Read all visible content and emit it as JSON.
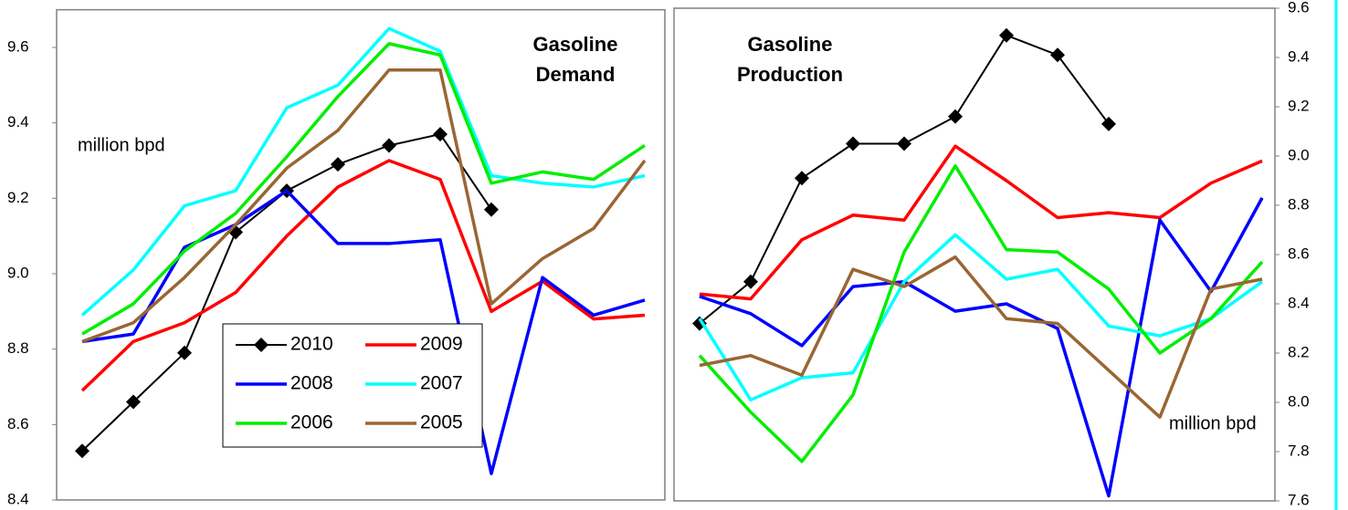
{
  "chart_data": [
    {
      "type": "line",
      "title": [
        "Gasoline",
        "Demand"
      ],
      "ylabel": "million bpd",
      "y_axis_side": "left",
      "categories": [
        null,
        null,
        null,
        null,
        null,
        null,
        null,
        null,
        null,
        null,
        null,
        null
      ],
      "ylim": [
        8.4,
        9.7
      ],
      "yticks": [
        8.4,
        8.6,
        8.8,
        {
          "value": 9,
          "label": "9.0"
        },
        9.2,
        9.4,
        9.6
      ],
      "series": [
        {
          "name": "2010",
          "color": "#000000",
          "marker": "diamond",
          "values": [
            8.53,
            8.66,
            8.79,
            9.11,
            9.22,
            9.29,
            9.34,
            9.37,
            9.17,
            null,
            null,
            null
          ]
        },
        {
          "name": "2009",
          "color": "#ff0000",
          "values": [
            8.69,
            8.82,
            8.87,
            8.95,
            9.1,
            9.23,
            9.3,
            9.25,
            8.9,
            8.98,
            8.88,
            8.89
          ]
        },
        {
          "name": "2008",
          "color": "#0000ff",
          "values": [
            8.82,
            8.84,
            9.07,
            9.13,
            9.22,
            9.08,
            9.08,
            9.09,
            8.47,
            8.99,
            8.89,
            8.93
          ]
        },
        {
          "name": "2007",
          "color": "#00ffff",
          "values": [
            8.89,
            9.01,
            9.18,
            9.22,
            9.44,
            9.5,
            9.65,
            9.59,
            9.26,
            9.24,
            9.23,
            9.26
          ]
        },
        {
          "name": "2006",
          "color": "#00ee00",
          "values": [
            8.84,
            8.92,
            9.06,
            9.16,
            9.31,
            9.47,
            9.61,
            9.58,
            9.24,
            9.27,
            9.25,
            9.34
          ]
        },
        {
          "name": "2005",
          "color": "#996633",
          "values": [
            8.82,
            8.87,
            8.99,
            9.13,
            9.28,
            9.38,
            9.54,
            9.54,
            8.92,
            9.04,
            9.12,
            9.3
          ]
        }
      ]
    },
    {
      "type": "line",
      "title": [
        "Gasoline",
        "Production"
      ],
      "ylabel": "million bpd",
      "y_axis_side": "right",
      "categories": [
        null,
        null,
        null,
        null,
        null,
        null,
        null,
        null,
        null,
        null,
        null,
        null
      ],
      "ylim": [
        7.6,
        9.6
      ],
      "yticks": [
        7.6,
        7.8,
        {
          "value": 8,
          "label": "8.0"
        },
        8.2,
        8.4,
        8.6,
        8.8,
        {
          "value": 9,
          "label": "9.0"
        },
        9.2,
        9.4,
        9.6
      ],
      "series": [
        {
          "color": "#000000",
          "marker": "diamond",
          "values": [
            8.32,
            8.49,
            8.91,
            9.05,
            9.05,
            9.16,
            9.49,
            9.41,
            9.13,
            null,
            null,
            null
          ]
        },
        {
          "color": "#ff0000",
          "values": [
            8.44,
            8.42,
            8.66,
            8.76,
            8.74,
            9.04,
            8.9,
            8.75,
            8.77,
            8.75,
            8.89,
            8.98
          ]
        },
        {
          "color": "#0000ff",
          "values": [
            8.43,
            8.36,
            8.23,
            8.47,
            8.49,
            8.37,
            8.4,
            8.3,
            7.62,
            8.74,
            8.45,
            8.83
          ]
        },
        {
          "color": "#00ffff",
          "values": [
            8.34,
            8.01,
            8.1,
            8.12,
            8.49,
            8.68,
            8.5,
            8.54,
            8.31,
            8.27,
            8.34,
            8.49
          ]
        },
        {
          "color": "#00ee00",
          "values": [
            8.19,
            7.96,
            7.76,
            8.03,
            8.61,
            8.96,
            8.62,
            8.61,
            8.46,
            8.2,
            8.34,
            8.57
          ]
        },
        {
          "color": "#996633",
          "values": [
            8.15,
            8.19,
            8.11,
            8.54,
            8.47,
            8.59,
            8.34,
            8.32,
            8.13,
            7.94,
            8.46,
            8.5
          ]
        }
      ]
    }
  ]
}
